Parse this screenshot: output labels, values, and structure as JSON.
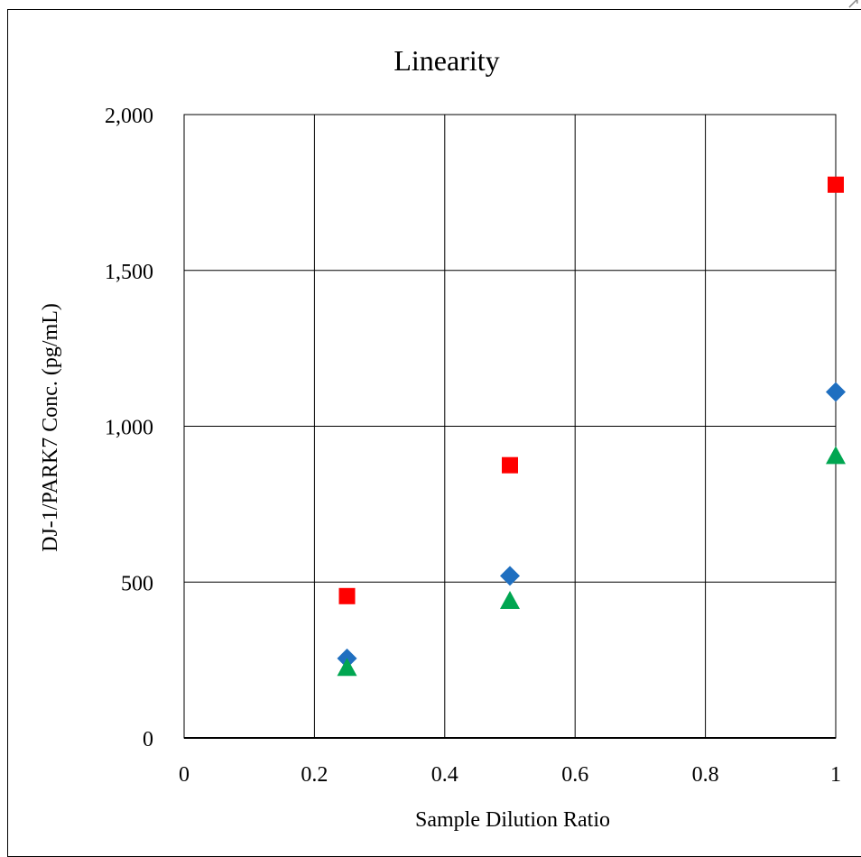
{
  "chart_data": {
    "type": "scatter",
    "title": "Linearity",
    "xlabel": "Sample Dilution Ratio",
    "ylabel": "DJ-1/PARK7 Conc. (pg/mL)",
    "xlim": [
      0,
      1
    ],
    "ylim": [
      0,
      2000
    ],
    "x_ticks": [
      "0",
      "0.2",
      "0.4",
      "0.6",
      "0.8",
      "1"
    ],
    "x_tick_values": [
      0,
      0.2,
      0.4,
      0.6,
      0.8,
      1
    ],
    "y_ticks": [
      "0",
      "500",
      "1,000",
      "1,500",
      "2,000"
    ],
    "y_tick_values": [
      0,
      500,
      1000,
      1500,
      2000
    ],
    "grid": true,
    "legend": "none",
    "series": [
      {
        "marker": "diamond",
        "color": "#1f6fc0",
        "x": [
          0.25,
          0.5,
          1
        ],
        "y": [
          255,
          520,
          1110
        ]
      },
      {
        "marker": "square",
        "color": "#ff0000",
        "x": [
          0.25,
          0.5,
          1
        ],
        "y": [
          455,
          875,
          1775
        ]
      },
      {
        "marker": "triangle",
        "color": "#00a651",
        "x": [
          0.25,
          0.5,
          1
        ],
        "y": [
          225,
          440,
          905
        ]
      }
    ]
  }
}
